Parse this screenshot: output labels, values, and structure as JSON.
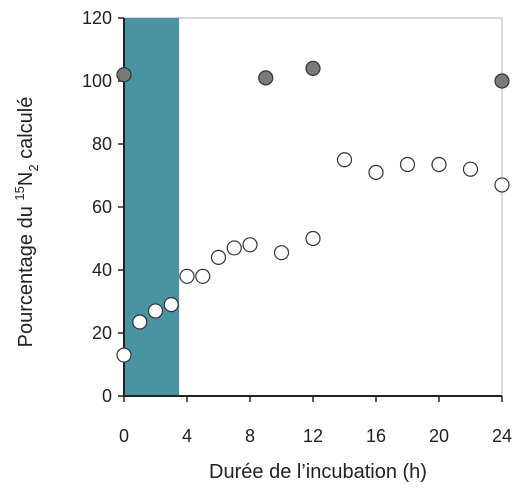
{
  "chart_data": {
    "type": "scatter",
    "title": "",
    "xlabel": "Durée de l’incubation (h)",
    "ylabel": {
      "prefix": "Pourcentage du ",
      "superscript": "15",
      "element": "N",
      "subscript": "2",
      "suffix": " calculé"
    },
    "xlim": [
      0,
      24
    ],
    "ylim": [
      0,
      120
    ],
    "xticks": [
      0,
      4,
      8,
      12,
      16,
      20,
      24
    ],
    "yticks": [
      0,
      20,
      40,
      60,
      80,
      100,
      120
    ],
    "grid": false,
    "shaded_region": {
      "x_from": 0,
      "x_to": 3.5,
      "color": "#4a93a3"
    },
    "series": [
      {
        "marker": "filled-circle",
        "color": "#7a7a7a",
        "points": [
          {
            "x": 0,
            "y": 102
          },
          {
            "x": 9,
            "y": 101
          },
          {
            "x": 12,
            "y": 104
          },
          {
            "x": 24,
            "y": 100
          }
        ]
      },
      {
        "marker": "open-circle",
        "color": "#ffffff",
        "points": [
          {
            "x": 0,
            "y": 13
          },
          {
            "x": 1,
            "y": 23.5
          },
          {
            "x": 2,
            "y": 27
          },
          {
            "x": 3,
            "y": 29
          },
          {
            "x": 4,
            "y": 38
          },
          {
            "x": 5,
            "y": 38
          },
          {
            "x": 6,
            "y": 44
          },
          {
            "x": 7,
            "y": 47
          },
          {
            "x": 8,
            "y": 48
          },
          {
            "x": 10,
            "y": 45.5
          },
          {
            "x": 12,
            "y": 50
          },
          {
            "x": 14,
            "y": 75
          },
          {
            "x": 16,
            "y": 71
          },
          {
            "x": 18,
            "y": 73.5
          },
          {
            "x": 20,
            "y": 73.5
          },
          {
            "x": 22,
            "y": 72
          },
          {
            "x": 24,
            "y": 67
          }
        ]
      }
    ]
  }
}
